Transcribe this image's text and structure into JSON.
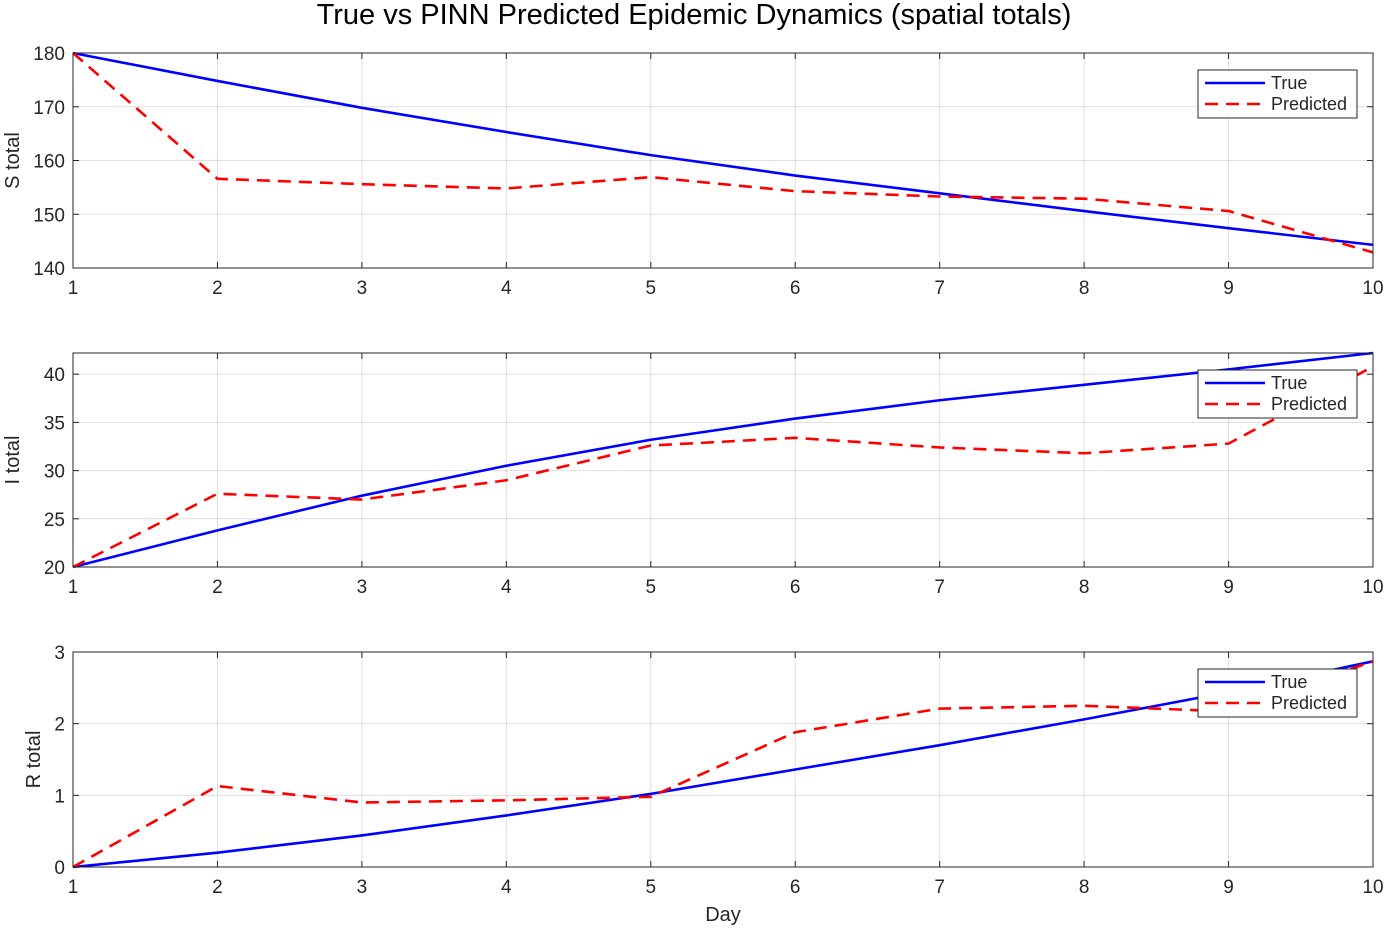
{
  "figure": {
    "title": "True vs PINN Predicted Epidemic Dynamics (spatial totals)"
  },
  "colors": {
    "true_line": "#0000ff",
    "predicted_line": "#ff0000",
    "axis": "#262626",
    "grid": "#262626"
  },
  "chart_data": [
    {
      "type": "line",
      "title": "",
      "xlabel": "",
      "ylabel": "S total",
      "x": [
        1,
        2,
        3,
        4,
        5,
        6,
        7,
        8,
        9,
        10
      ],
      "xlim": [
        1,
        10
      ],
      "ylim": [
        140,
        180
      ],
      "xticks": [
        1,
        2,
        3,
        4,
        5,
        6,
        7,
        8,
        9,
        10
      ],
      "yticks": [
        140,
        150,
        160,
        170,
        180
      ],
      "grid": true,
      "legend_position": "top-right",
      "series": [
        {
          "name": "True",
          "style": "solid",
          "values": [
            180,
            174.8,
            169.8,
            165.3,
            161.0,
            157.2,
            153.9,
            150.6,
            147.4,
            144.3
          ]
        },
        {
          "name": "Predicted",
          "style": "dashed",
          "values": [
            180,
            156.6,
            155.6,
            154.8,
            156.9,
            154.3,
            153.3,
            152.9,
            150.6,
            142.9
          ]
        }
      ]
    },
    {
      "type": "line",
      "title": "",
      "xlabel": "",
      "ylabel": "I total",
      "x": [
        1,
        2,
        3,
        4,
        5,
        6,
        7,
        8,
        9,
        10
      ],
      "xlim": [
        1,
        10
      ],
      "ylim": [
        20,
        42.2
      ],
      "xticks": [
        1,
        2,
        3,
        4,
        5,
        6,
        7,
        8,
        9,
        10
      ],
      "yticks": [
        20,
        25,
        30,
        35,
        40
      ],
      "grid": true,
      "legend_position": "top-right",
      "series": [
        {
          "name": "True",
          "style": "solid",
          "values": [
            20.0,
            23.8,
            27.4,
            30.5,
            33.2,
            35.4,
            37.3,
            38.9,
            40.5,
            42.2
          ]
        },
        {
          "name": "Predicted",
          "style": "dashed",
          "values": [
            20.0,
            27.6,
            27.0,
            29.0,
            32.6,
            33.4,
            32.4,
            31.8,
            32.8,
            40.8
          ]
        }
      ]
    },
    {
      "type": "line",
      "title": "",
      "xlabel": "Day",
      "ylabel": "R total",
      "x": [
        1,
        2,
        3,
        4,
        5,
        6,
        7,
        8,
        9,
        10
      ],
      "xlim": [
        1,
        10
      ],
      "ylim": [
        0,
        3
      ],
      "xticks": [
        1,
        2,
        3,
        4,
        5,
        6,
        7,
        8,
        9,
        10
      ],
      "yticks": [
        0,
        1,
        2,
        3
      ],
      "grid": true,
      "legend_position": "top-right",
      "series": [
        {
          "name": "True",
          "style": "solid",
          "values": [
            0.0,
            0.2,
            0.44,
            0.72,
            1.02,
            1.36,
            1.7,
            2.06,
            2.44,
            2.87
          ]
        },
        {
          "name": "Predicted",
          "style": "dashed",
          "values": [
            0.0,
            1.13,
            0.9,
            0.93,
            0.98,
            1.88,
            2.21,
            2.25,
            2.17,
            2.87
          ]
        }
      ]
    }
  ]
}
